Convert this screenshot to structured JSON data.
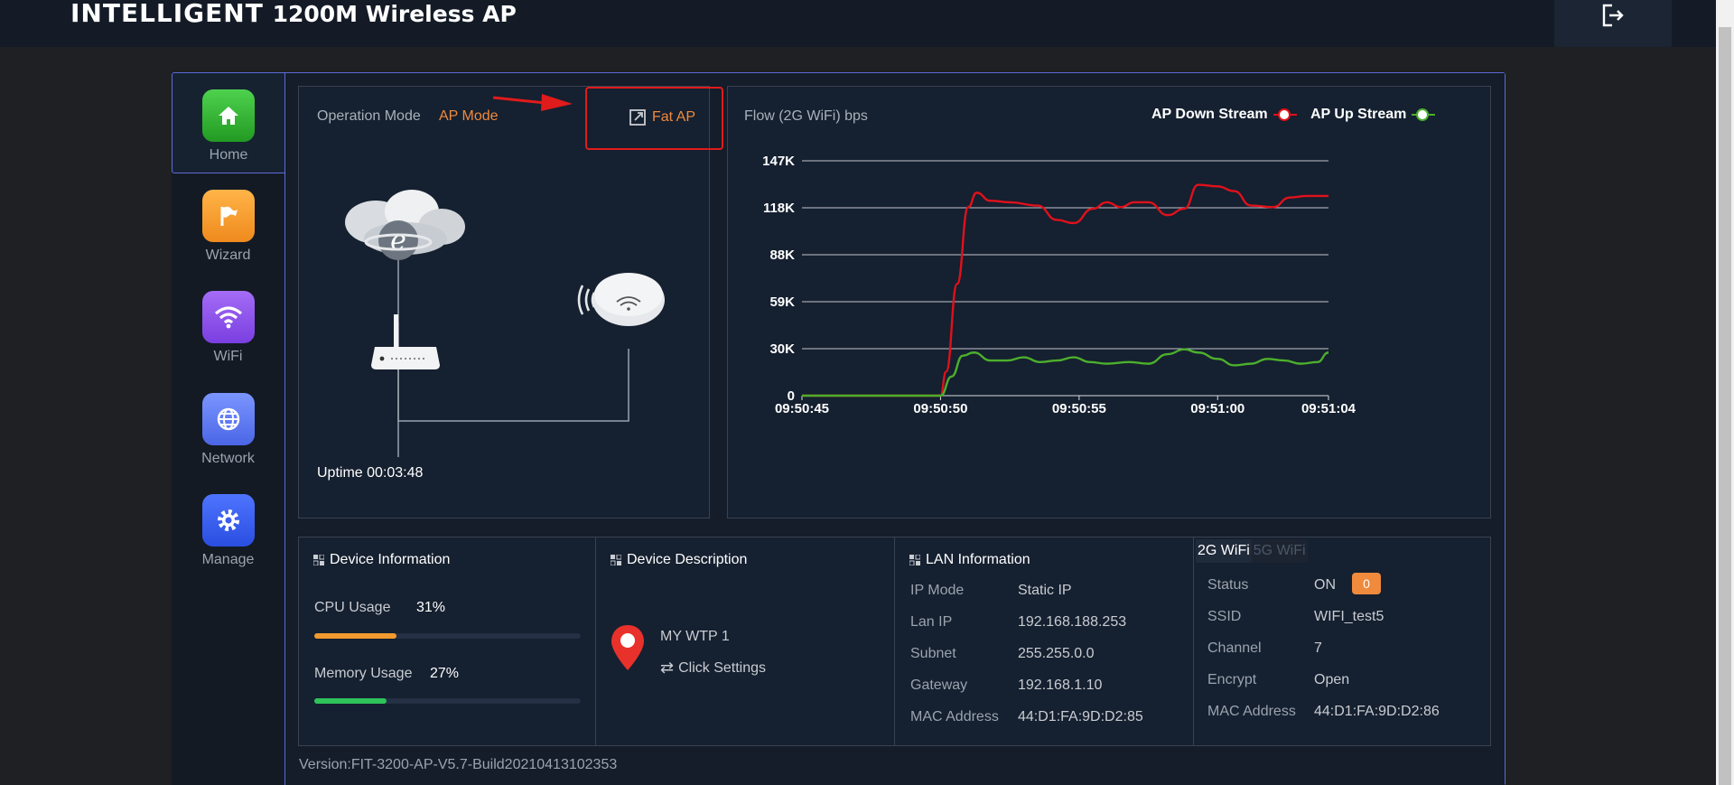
{
  "header": {
    "brand_bold": "INTELLIGENT",
    "brand_rest": "1200M Wireless AP",
    "logout_icon": "logout-icon"
  },
  "sidebar": {
    "items": [
      {
        "label": "Home",
        "icon": "home-icon",
        "color": "#3cb93c"
      },
      {
        "label": "Wizard",
        "icon": "flag-icon",
        "color": "#f39a2f"
      },
      {
        "label": "WiFi",
        "icon": "wifi-icon",
        "color": "#8a52e8"
      },
      {
        "label": "Network",
        "icon": "globe-icon",
        "color": "#5b76f0"
      },
      {
        "label": "Manage",
        "icon": "gear-icon",
        "color": "#3a5ef0"
      }
    ]
  },
  "operation": {
    "label": "Operation Mode",
    "mode": "AP Mode",
    "fat_ap": "Fat AP",
    "uptime_label": "Uptime",
    "uptime_value": "00:03:48"
  },
  "flow": {
    "title": "Flow (2G WiFi) bps",
    "legend_down": "AP Down Stream",
    "legend_up": "AP Up Stream"
  },
  "chart_data": {
    "type": "line",
    "title": "Flow (2G WiFi) bps",
    "y_ticks": [
      "0",
      "30K",
      "59K",
      "88K",
      "118K",
      "147K"
    ],
    "y_tick_values": [
      0,
      29400,
      58800,
      88200,
      117600,
      147000
    ],
    "ylim": [
      0,
      147000
    ],
    "x_ticks": [
      "09:50:45",
      "09:50:50",
      "09:50:55",
      "09:51:00",
      "09:51:04"
    ],
    "x_tick_values": [
      0,
      5,
      10,
      15,
      19
    ],
    "xlim": [
      0,
      19
    ],
    "grid": true,
    "legend_position": "top-right",
    "colors": {
      "down": "#e0111b",
      "up": "#4caf2c"
    },
    "series": [
      {
        "name": "AP Down Stream",
        "color": "#e0111b",
        "x": [
          0,
          1,
          2,
          3,
          4,
          5,
          5.2,
          5.6,
          6,
          6.3,
          6.8,
          7.5,
          8.5,
          9.2,
          9.8,
          10.5,
          11,
          11.5,
          12,
          12.5,
          13.2,
          13.8,
          14.3,
          15,
          15.6,
          16.2,
          17,
          17.6,
          18.2,
          19
        ],
        "y": [
          0,
          0,
          0,
          0,
          0,
          0,
          15000,
          70000,
          118000,
          127000,
          122000,
          121000,
          119000,
          110000,
          108000,
          117000,
          121000,
          118000,
          121000,
          121000,
          113000,
          117000,
          132000,
          131000,
          128000,
          119000,
          118000,
          124000,
          125000,
          125000
        ]
      },
      {
        "name": "AP Up Stream",
        "color": "#4caf2c",
        "x": [
          0,
          1,
          2,
          3,
          4,
          5,
          5.4,
          5.8,
          6.2,
          6.8,
          7.4,
          8,
          8.6,
          9.2,
          9.8,
          10.4,
          11,
          11.8,
          12.5,
          13.2,
          13.8,
          14.3,
          15,
          15.6,
          16.2,
          16.8,
          17.4,
          18,
          18.6,
          19
        ],
        "y": [
          0,
          0,
          0,
          0,
          0,
          0,
          12000,
          25000,
          27000,
          22000,
          22000,
          24000,
          21000,
          22000,
          24000,
          21000,
          20000,
          21000,
          20000,
          26000,
          29000,
          27000,
          23000,
          19000,
          20000,
          23000,
          22000,
          20000,
          21000,
          27000
        ]
      }
    ]
  },
  "device_info": {
    "title": "Device Information",
    "cpu_label": "CPU Usage",
    "cpu_value": "31%",
    "cpu_fraction": 0.31,
    "mem_label": "Memory Usage",
    "mem_value": "27%",
    "mem_fraction": 0.27,
    "cpu_color": "#f39a2f",
    "mem_color": "#2ec45a"
  },
  "device_desc": {
    "title": "Device Description",
    "name": "MY WTP 1",
    "settings": "Click Settings"
  },
  "lan": {
    "title": "LAN Information",
    "rows": [
      {
        "k": "IP Mode",
        "v": "Static IP"
      },
      {
        "k": "Lan IP",
        "v": "192.168.188.253"
      },
      {
        "k": "Subnet",
        "v": "255.255.0.0"
      },
      {
        "k": "Gateway",
        "v": "192.168.1.10"
      },
      {
        "k": "MAC Address",
        "v": "44:D1:FA:9D:D2:85"
      }
    ]
  },
  "wifi": {
    "tab_2g": "2G WiFi",
    "tab_5g": "5G WiFi",
    "status_label": "Status",
    "status_value": "ON",
    "clients": "0",
    "rows": [
      {
        "k": "SSID",
        "v": "WIFI_test5"
      },
      {
        "k": "Channel",
        "v": "7"
      },
      {
        "k": "Encrypt",
        "v": "Open"
      },
      {
        "k": "MAC Address",
        "v": "44:D1:FA:9D:D2:86"
      }
    ]
  },
  "footer": {
    "version": "Version:FIT-3200-AP-V5.7-Build20210413102353"
  }
}
